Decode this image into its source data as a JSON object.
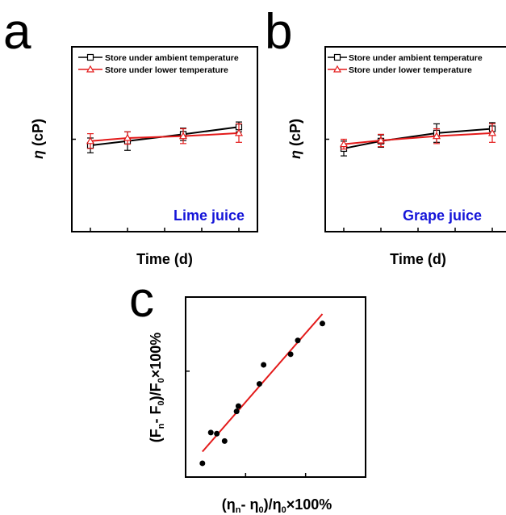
{
  "panel_letters": {
    "a": "a",
    "b": "b",
    "c": "c"
  },
  "chart_data": [
    {
      "type": "line",
      "panel": "a",
      "x": [
        0,
        2,
        5,
        8
      ],
      "xlabel": "Time (d)",
      "ylabel_symbol": "η",
      "ylabel_rest": " (cP)",
      "xlim": [
        -1,
        9
      ],
      "ylim": [
        0,
        3
      ],
      "xticks": [
        "0",
        "2",
        "4",
        "6",
        "8"
      ],
      "yticks": [
        "0.0",
        "1.5",
        "3.0"
      ],
      "annotation": "Lime juice",
      "legend_position": "top-left",
      "series": [
        {
          "name": "Store under ambient temperature",
          "color": "#000000",
          "marker": "square",
          "values": [
            1.4,
            1.47,
            1.58,
            1.7
          ],
          "errors": [
            0.12,
            0.15,
            0.1,
            0.08
          ]
        },
        {
          "name": "Store under lower temperature",
          "color": "#e31a1a",
          "marker": "triangle",
          "values": [
            1.47,
            1.52,
            1.55,
            1.6
          ],
          "errors": [
            0.12,
            0.1,
            0.12,
            0.15
          ]
        }
      ]
    },
    {
      "type": "line",
      "panel": "b",
      "x": [
        0,
        2,
        5,
        8
      ],
      "xlabel": "Time (d)",
      "ylabel_symbol": "η",
      "ylabel_rest": " (cP)",
      "xlim": [
        -1,
        9
      ],
      "ylim": [
        0,
        3
      ],
      "xticks": [
        "0",
        "2",
        "4",
        "6",
        "8"
      ],
      "yticks": [
        "0.0",
        "1.5",
        "3.0"
      ],
      "annotation": "Grape juice",
      "legend_position": "top-left",
      "series": [
        {
          "name": "Store under ambient temperature",
          "color": "#000000",
          "marker": "square",
          "values": [
            1.35,
            1.47,
            1.6,
            1.67
          ],
          "errors": [
            0.12,
            0.1,
            0.15,
            0.1
          ]
        },
        {
          "name": "Store under lower temperature",
          "color": "#e31a1a",
          "marker": "triangle",
          "values": [
            1.42,
            1.48,
            1.55,
            1.6
          ],
          "errors": [
            0.08,
            0.1,
            0.12,
            0.15
          ]
        }
      ]
    },
    {
      "type": "scatter",
      "panel": "c",
      "xlabel": "(η_n- η_0)/η_0×100%",
      "ylabel": "(F_n- F_0)/F_0×100%",
      "xlim": [
        0,
        30
      ],
      "ylim": [
        0,
        17
      ],
      "xticks": [
        "0",
        "10",
        "20",
        "30"
      ],
      "yticks": [
        "0",
        "10"
      ],
      "series": [
        {
          "name": "",
          "color": "#000000",
          "x": [
            2.8,
            4.2,
            5.2,
            6.5,
            8.5,
            8.8,
            12.3,
            13.0,
            17.5,
            18.7,
            22.8
          ],
          "y": [
            1.3,
            4.2,
            4.1,
            3.4,
            6.2,
            6.7,
            8.8,
            10.6,
            11.6,
            12.9,
            14.5
          ]
        }
      ],
      "fit_line": {
        "color": "#e31a1a",
        "x": [
          2.8,
          22.8
        ],
        "y": [
          2.4,
          15.4
        ]
      }
    }
  ]
}
